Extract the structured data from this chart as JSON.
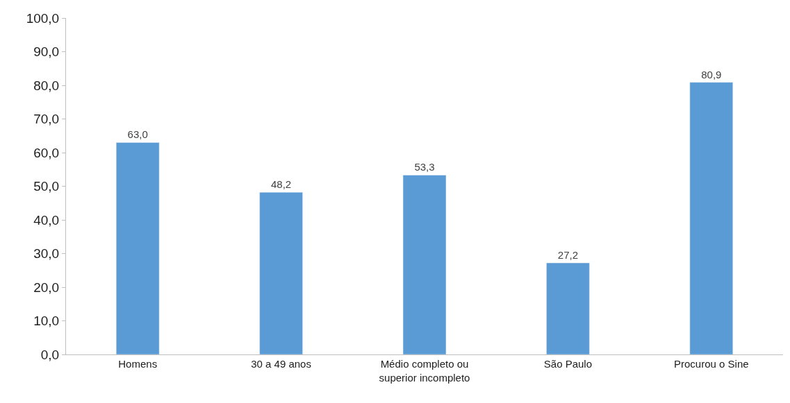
{
  "chart_data": {
    "type": "bar",
    "categories": [
      "Homens",
      "30 a 49 anos",
      "Médio completo ou superior incompleto",
      "São Paulo",
      "Procurou o Sine"
    ],
    "values": [
      63.0,
      48.2,
      53.3,
      27.2,
      80.9
    ],
    "value_labels": [
      "63,0",
      "48,2",
      "53,3",
      "27,2",
      "80,9"
    ],
    "color": "#5b9bd5",
    "ylim": [
      0,
      100
    ],
    "yticks": [
      {
        "value": 0,
        "label": "0,0"
      },
      {
        "value": 10,
        "label": "10,0"
      },
      {
        "value": 20,
        "label": "20,0"
      },
      {
        "value": 30,
        "label": "30,0"
      },
      {
        "value": 40,
        "label": "40,0"
      },
      {
        "value": 50,
        "label": "50,0"
      },
      {
        "value": 60,
        "label": "60,0"
      },
      {
        "value": 70,
        "label": "70,0"
      },
      {
        "value": 80,
        "label": "80,0"
      },
      {
        "value": 90,
        "label": "90,0"
      },
      {
        "value": 100,
        "label": "100,0"
      }
    ],
    "grid": false,
    "legend": false
  }
}
